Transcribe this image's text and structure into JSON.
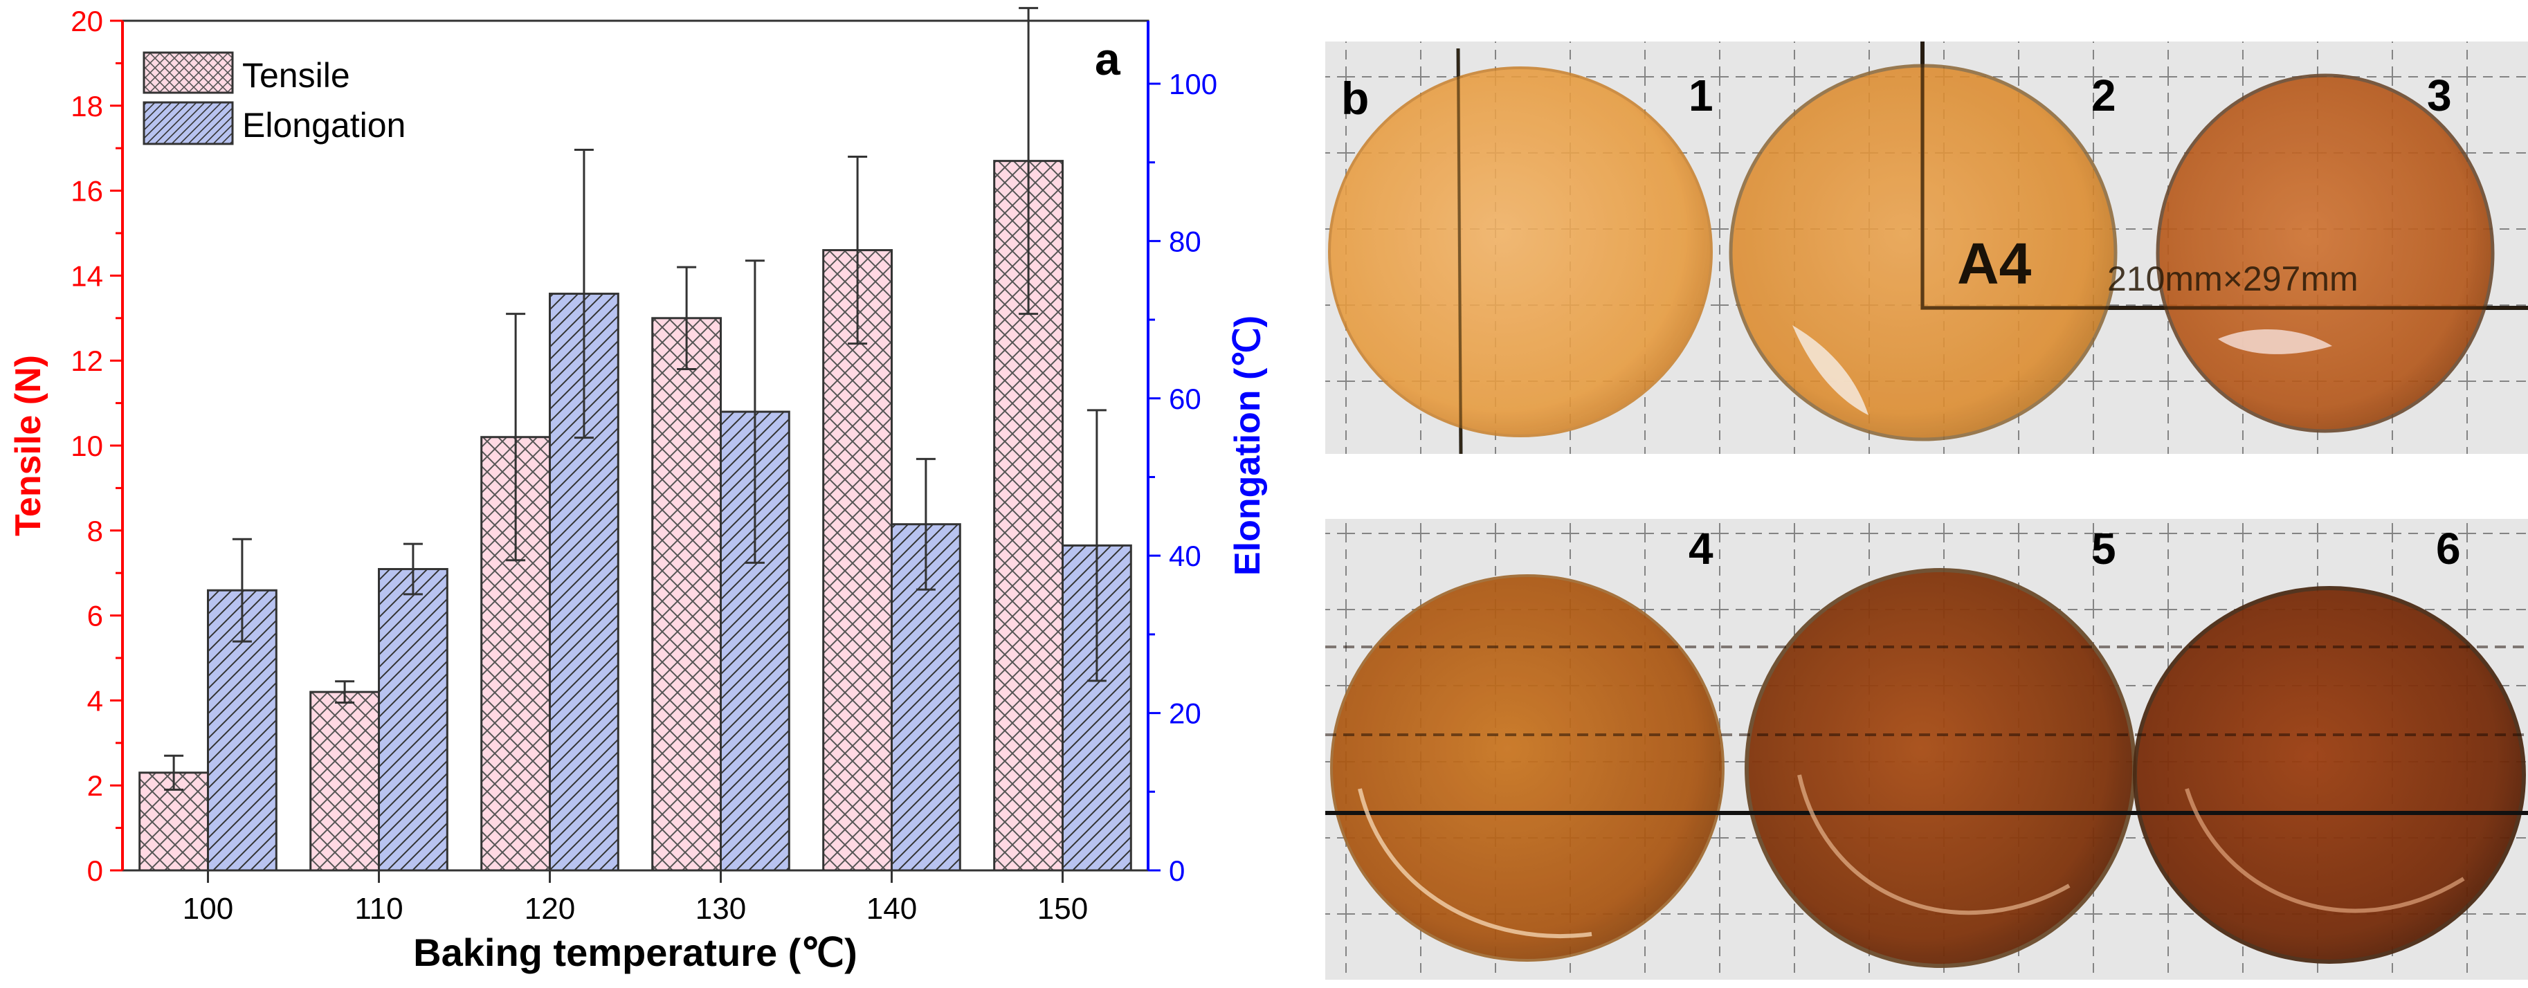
{
  "chart_data": {
    "type": "bar",
    "panel_label": "a",
    "categories": [
      "100",
      "110",
      "120",
      "130",
      "140",
      "150"
    ],
    "xlabel": "Baking temperature (℃)",
    "series": [
      {
        "name": "Tensile",
        "axis": "left",
        "values": [
          2.3,
          4.2,
          10.2,
          13.0,
          14.6,
          16.7
        ],
        "errors": [
          0.4,
          0.25,
          2.9,
          1.2,
          2.2,
          3.6
        ]
      },
      {
        "name": "Elongation",
        "axis": "right",
        "values": [
          35.6,
          38.3,
          73.3,
          58.3,
          44.0,
          41.3
        ],
        "errors": [
          6.5,
          3.2,
          18.3,
          19.2,
          8.3,
          17.2
        ]
      }
    ],
    "left_axis": {
      "label": "Tensile (N)",
      "min": 0,
      "max": 20,
      "ticks": [
        "0",
        "2",
        "4",
        "6",
        "8",
        "10",
        "12",
        "14",
        "16",
        "18",
        "20"
      ]
    },
    "right_axis": {
      "label": "Elongation (℃)",
      "min": 0,
      "max": 108,
      "ticks": [
        "0",
        "20",
        "40",
        "60",
        "80",
        "100"
      ]
    },
    "legend_position": "top-left"
  },
  "photo_panel": {
    "label": "b",
    "top_row": {
      "labels": [
        "1",
        "2",
        "3"
      ],
      "print_text": "A4",
      "print_dims": "210mm×297mm"
    },
    "bottom_row": {
      "labels": [
        "4",
        "5",
        "6"
      ]
    }
  },
  "colors": {
    "left_axis": "#ff0000",
    "right_axis": "#0000ff",
    "tensile_fill": "#ffd9e3",
    "elongation_fill": "#b8c3f0",
    "pattern": "#555555"
  }
}
